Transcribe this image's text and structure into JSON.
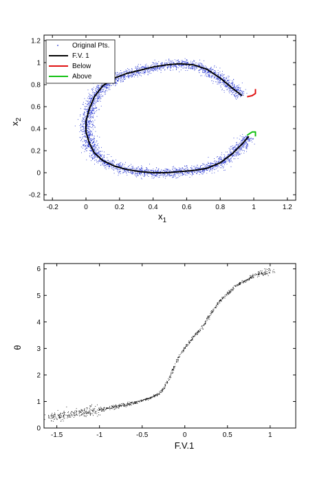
{
  "chart_data": [
    {
      "type": "scatter",
      "xlabel": "x",
      "xlabel_sub": "1",
      "ylabel": "x",
      "ylabel_sub": "2",
      "xlim": [
        -0.25,
        1.25
      ],
      "ylim": [
        -0.25,
        1.25
      ],
      "xticks": [
        -0.2,
        0,
        0.2,
        0.4,
        0.6,
        0.8,
        1,
        1.2
      ],
      "xtick_labels": [
        "-0.2",
        "0",
        "0.2",
        "0.4",
        "0.6",
        "0.8",
        "1",
        "1.2"
      ],
      "yticks": [
        -0.2,
        0,
        0.2,
        0.4,
        0.6,
        0.8,
        1,
        1.2
      ],
      "ytick_labels": [
        "-0.2",
        "0",
        "0.2",
        "0.4",
        "0.6",
        "0.8",
        "1",
        "1.2"
      ],
      "legend": {
        "position": "top-left",
        "entries": [
          "Original Pts.",
          "F.V. 1",
          "Below",
          "Above"
        ]
      },
      "colors": {
        "points": "#1f2fd0",
        "fv1": "#000000",
        "below": "#e01010",
        "above": "#10c010"
      },
      "series": [
        {
          "name": "F.V. 1",
          "x": [
            0.93,
            0.87,
            0.8,
            0.72,
            0.64,
            0.56,
            0.48,
            0.4,
            0.32,
            0.24,
            0.17,
            0.1,
            0.05,
            0.02,
            0.0,
            0.0,
            0.02,
            0.05,
            0.1,
            0.17,
            0.24,
            0.32,
            0.4,
            0.48,
            0.56,
            0.64,
            0.72,
            0.8,
            0.87,
            0.93,
            0.97
          ],
          "y": [
            0.7,
            0.77,
            0.86,
            0.94,
            0.98,
            0.99,
            0.98,
            0.96,
            0.93,
            0.9,
            0.86,
            0.79,
            0.69,
            0.58,
            0.47,
            0.37,
            0.27,
            0.18,
            0.11,
            0.06,
            0.03,
            0.01,
            0.0,
            0.0,
            0.01,
            0.02,
            0.04,
            0.09,
            0.17,
            0.26,
            0.33
          ]
        },
        {
          "name": "Below",
          "x": [
            0.96,
            0.99,
            1.01,
            1.01
          ],
          "y": [
            0.69,
            0.7,
            0.72,
            0.76
          ]
        },
        {
          "name": "Above",
          "x": [
            0.96,
            0.99,
            1.01,
            1.01
          ],
          "y": [
            0.34,
            0.37,
            0.37,
            0.33
          ]
        }
      ]
    },
    {
      "type": "scatter",
      "xlabel": "F.V.1",
      "ylabel": "θ",
      "xlim": [
        -1.65,
        1.3
      ],
      "ylim": [
        0,
        6.2
      ],
      "xticks": [
        -1.5,
        -1,
        -0.5,
        0,
        0.5,
        1
      ],
      "xtick_labels": [
        "-1.5",
        "-1",
        "-0.5",
        "0",
        "0.5",
        "1"
      ],
      "yticks": [
        0,
        1,
        2,
        3,
        4,
        5,
        6
      ],
      "ytick_labels": [
        "0",
        "1",
        "2",
        "3",
        "4",
        "5",
        "6"
      ],
      "series": [
        {
          "x": [
            -1.6,
            -1.5,
            -1.4,
            -1.2,
            -1.0,
            -0.8,
            -0.6,
            -0.4,
            -0.3,
            -0.25,
            -0.2,
            -0.15,
            -0.1,
            -0.05,
            0.0,
            0.05,
            0.1,
            0.15,
            0.2,
            0.25,
            0.3,
            0.35,
            0.4,
            0.5,
            0.6,
            0.7,
            0.8,
            0.9,
            1.0
          ],
          "y": [
            0.4,
            0.45,
            0.5,
            0.6,
            0.7,
            0.82,
            0.95,
            1.15,
            1.32,
            1.5,
            1.78,
            2.15,
            2.5,
            2.82,
            3.05,
            3.25,
            3.45,
            3.62,
            3.8,
            4.05,
            4.32,
            4.55,
            4.78,
            5.08,
            5.38,
            5.55,
            5.72,
            5.85,
            5.95
          ]
        }
      ]
    }
  ]
}
